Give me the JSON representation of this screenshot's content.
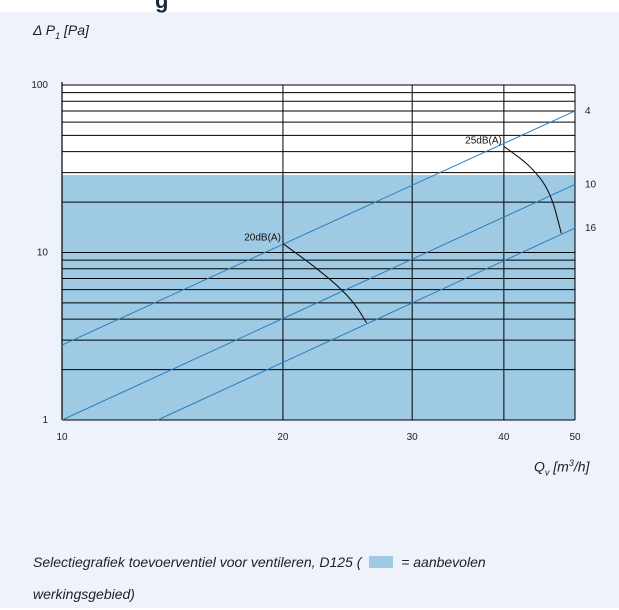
{
  "header": {
    "partial_title": "g"
  },
  "chart_data": {
    "type": "line",
    "y_label_prefix": "Δ P",
    "y_label_sub": "1",
    "y_label_unit": "[Pa]",
    "x_label_main": "Q",
    "x_label_sub": "v",
    "x_label_unit": "[m",
    "x_label_sup": "3",
    "x_label_tail": "/h]",
    "xscale": "log",
    "yscale": "log",
    "xlim": [
      10,
      50
    ],
    "ylim": [
      1,
      100
    ],
    "x_ticks": [
      {
        "value": 10,
        "label": "10"
      },
      {
        "value": 20,
        "label": "20"
      },
      {
        "value": 30,
        "label": "30"
      },
      {
        "value": 40,
        "label": "40"
      },
      {
        "value": 50,
        "label": "50"
      }
    ],
    "y_ticks": [
      {
        "value": 1,
        "label": "1"
      },
      {
        "value": 10,
        "label": "10"
      },
      {
        "value": 100,
        "label": "100"
      }
    ],
    "grid": true,
    "recommended_region": {
      "y_from": 1,
      "y_to": 29,
      "color": "#9ecae4"
    },
    "lines": [
      {
        "name": "4",
        "points": [
          [
            10,
            2.8
          ],
          [
            50,
            70
          ]
        ]
      },
      {
        "name": "10",
        "points": [
          [
            10,
            1.0
          ],
          [
            50,
            25.5
          ]
        ]
      },
      {
        "name": "16",
        "points": [
          [
            13.5,
            1.0
          ],
          [
            50,
            14.0
          ]
        ]
      }
    ],
    "isolines": [
      {
        "name": "20dB(A)",
        "label_at": [
          20,
          11.3
        ],
        "points": [
          [
            20,
            11.3
          ],
          [
            21.8,
            8.6
          ],
          [
            23.8,
            6.3
          ],
          [
            25.1,
            4.9
          ],
          [
            26,
            3.8
          ]
        ]
      },
      {
        "name": "25dB(A)",
        "label_at": [
          40,
          43
        ],
        "points": [
          [
            40,
            43
          ],
          [
            43.5,
            33
          ],
          [
            46.3,
            23
          ],
          [
            47.9,
            13
          ]
        ]
      }
    ]
  },
  "caption": {
    "before_swatch": "Selectiegrafiek toevoerventiel voor ventileren, D125 (",
    "after_swatch": "= aanbevolen",
    "line2": "werkingsgebied)"
  },
  "colors": {
    "panel_background": "#eef2fa",
    "recommended_area": "#9ecae4",
    "performance_line": "#2a7fc0",
    "grid": "#000000"
  }
}
